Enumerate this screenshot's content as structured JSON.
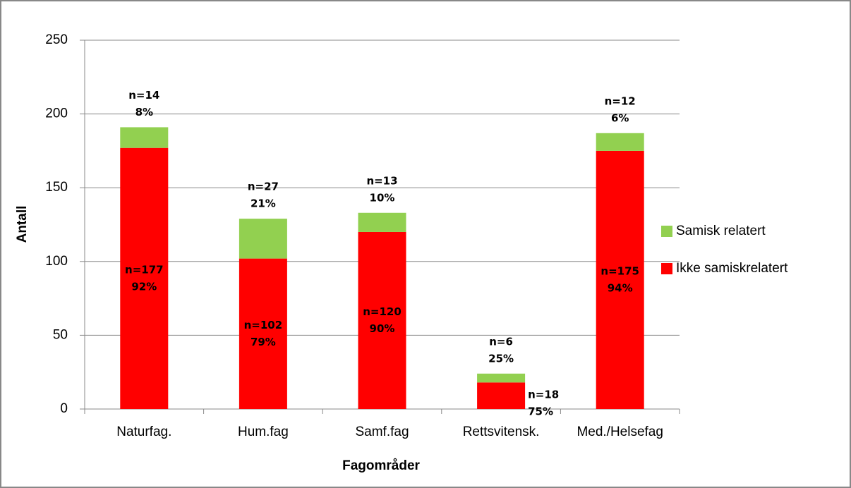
{
  "chart_data": {
    "type": "stacked_bar",
    "x_label": "Fagområder",
    "y_label": "Antall",
    "categories": [
      "Naturfag.",
      "Hum.fag",
      "Samf.fag",
      "Rettsvitensk.",
      "Med./Helsefag"
    ],
    "series": [
      {
        "name": "Ikke samiskrelatert",
        "color": "#ff0000",
        "values": [
          177,
          102,
          120,
          18,
          175
        ],
        "value_labels": [
          "n=177",
          "n=102",
          "n=120",
          "n=18",
          "n=175"
        ],
        "shares": [
          92,
          79,
          90,
          75,
          94
        ],
        "share_labels": [
          "92%",
          "79%",
          "90%",
          "75%",
          "94%"
        ]
      },
      {
        "name": "Samisk relatert",
        "color": "#92d050",
        "values": [
          14,
          27,
          13,
          6,
          12
        ],
        "value_labels": [
          "n=14",
          "n=27",
          "n=13",
          "n=6",
          "n=12"
        ],
        "shares": [
          8,
          21,
          10,
          25,
          6
        ],
        "share_labels": [
          "8%",
          "21%",
          "10%",
          "25%",
          "6%"
        ]
      }
    ],
    "ylim": [
      0,
      250
    ],
    "yticks": [
      0,
      50,
      100,
      150,
      200,
      250
    ],
    "grid": true,
    "legend": "right"
  }
}
